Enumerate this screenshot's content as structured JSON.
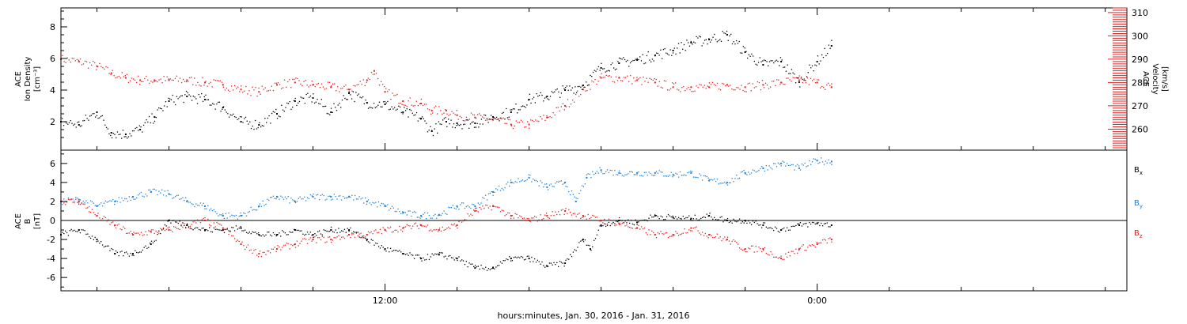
{
  "colors": {
    "black": "#000000",
    "red": "#e02020",
    "blue": "#1f7fd6",
    "background": "#ffffff"
  },
  "caption": "hours:minutes, Jan. 30, 2016 - Jan. 31, 2016",
  "chart_data": [
    {
      "type": "scatter",
      "panel": "top",
      "x_unit": "hours since 00:00 Jan. 30, 2016",
      "xlim": [
        3.0,
        32.6
      ],
      "x_ticks": [
        {
          "x": 12.0,
          "label": "12:00"
        },
        {
          "x": 24.0,
          "label": "0:00"
        }
      ],
      "left_axis": {
        "label_lines": [
          "ACE",
          "Ion Density",
          "[cm⁻³]"
        ],
        "ylim": [
          0.2,
          9.2
        ],
        "ticks": [
          2,
          4,
          6,
          8
        ],
        "color": "#000000"
      },
      "right_axis": {
        "label_lines": [
          "ACE",
          "Velocity",
          "[km/s]"
        ],
        "ylim": [
          251,
          312
        ],
        "ticks": [
          260,
          270,
          280,
          290,
          300,
          310
        ],
        "color": "#e02020"
      },
      "series": [
        {
          "axis": "left",
          "color": "#000000",
          "x": [
            3.0,
            3.5,
            4.0,
            4.4,
            4.8,
            5.2,
            5.6,
            6.0,
            6.5,
            7.0,
            7.5,
            8.0,
            8.5,
            9.0,
            9.5,
            10.0,
            10.5,
            11.0,
            11.5,
            12.0,
            12.5,
            13.0,
            13.3,
            13.7,
            14.0,
            14.5,
            15.0,
            15.5,
            16.0,
            16.5,
            17.0,
            17.5,
            18.0,
            18.5,
            19.0,
            19.5,
            20.0,
            20.5,
            21.0,
            21.5,
            22.0,
            22.5,
            23.0,
            23.5,
            24.0,
            24.4
          ],
          "y": [
            2.0,
            1.8,
            2.6,
            1.3,
            1.2,
            1.5,
            2.3,
            3.3,
            3.6,
            3.4,
            2.9,
            2.0,
            1.8,
            2.5,
            3.3,
            3.5,
            2.6,
            3.8,
            3.2,
            3.1,
            2.6,
            2.2,
            1.4,
            2.0,
            1.9,
            1.9,
            2.3,
            2.6,
            3.4,
            3.6,
            4.0,
            4.3,
            5.4,
            5.7,
            5.9,
            6.2,
            6.5,
            7.0,
            7.2,
            7.5,
            6.4,
            5.6,
            5.8,
            4.5,
            5.8,
            6.8
          ]
        },
        {
          "axis": "right",
          "color": "#e02020",
          "x": [
            3.0,
            3.5,
            4.0,
            4.4,
            4.8,
            5.2,
            5.6,
            6.0,
            6.5,
            7.0,
            7.5,
            8.0,
            8.5,
            9.0,
            9.5,
            10.0,
            10.5,
            11.0,
            11.5,
            11.7,
            12.0,
            12.5,
            13.0,
            13.3,
            13.7,
            14.0,
            14.5,
            15.0,
            15.5,
            16.0,
            16.5,
            17.0,
            17.5,
            18.0,
            18.5,
            19.0,
            19.5,
            20.0,
            20.5,
            21.0,
            21.5,
            22.0,
            22.5,
            23.0,
            23.5,
            24.0,
            24.4
          ],
          "y": [
            290,
            289,
            287,
            284,
            282,
            281,
            281,
            281,
            281,
            280,
            279,
            277,
            276,
            279,
            280,
            279,
            278,
            277,
            281,
            285,
            276,
            272,
            271,
            268,
            268,
            266,
            265,
            264,
            262,
            262,
            265,
            270,
            277,
            282,
            282,
            281,
            280,
            278,
            278,
            278,
            279,
            278,
            279,
            280,
            281,
            280,
            278
          ]
        }
      ]
    },
    {
      "type": "scatter",
      "panel": "bottom",
      "x_unit": "hours since 00:00 Jan. 30, 2016",
      "xlim": [
        3.0,
        32.6
      ],
      "left_axis": {
        "label_lines": [
          "ACE",
          "B",
          "[nT]"
        ],
        "ylim": [
          -7.4,
          7.4
        ],
        "ticks": [
          -6,
          -4,
          -2,
          0,
          2,
          4,
          6
        ],
        "color": "#000000"
      },
      "zero_line": 0,
      "legend": [
        {
          "text": "B",
          "sub": "x",
          "color": "#000000"
        },
        {
          "text": "B",
          "sub": "y",
          "color": "#1f7fd6"
        },
        {
          "text": "B",
          "sub": "z",
          "color": "#e02020"
        }
      ],
      "series": [
        {
          "name": "Bx",
          "color": "#000000",
          "x": [
            3.0,
            3.5,
            4.0,
            4.5,
            5.0,
            5.5,
            6.0,
            6.5,
            7.0,
            7.5,
            8.0,
            8.5,
            9.0,
            9.5,
            10.0,
            10.5,
            11.0,
            11.5,
            12.0,
            12.5,
            13.0,
            13.5,
            14.0,
            14.5,
            15.0,
            15.5,
            16.0,
            16.5,
            17.0,
            17.5,
            17.7,
            18.0,
            18.5,
            19.0,
            19.5,
            20.0,
            20.5,
            21.0,
            21.5,
            22.0,
            22.5,
            23.0,
            23.5,
            24.0,
            24.4
          ],
          "y": [
            -1.5,
            -1.0,
            -2.0,
            -3.5,
            -3.5,
            -2.5,
            0.0,
            -0.5,
            -1.0,
            -1.0,
            -0.8,
            -1.5,
            -1.5,
            -1.0,
            -1.5,
            -1.0,
            -1.0,
            -2.0,
            -3.0,
            -3.5,
            -4.0,
            -3.6,
            -4.0,
            -5.0,
            -5.0,
            -4.0,
            -4.0,
            -4.8,
            -4.5,
            -2.0,
            -3.0,
            -0.5,
            0.0,
            -0.2,
            0.5,
            0.3,
            0.2,
            0.5,
            0.0,
            0.0,
            -0.5,
            -1.0,
            -0.5,
            -0.3,
            -0.5
          ]
        },
        {
          "name": "By",
          "color": "#1f7fd6",
          "x": [
            3.0,
            3.5,
            4.0,
            4.5,
            5.0,
            5.5,
            6.0,
            6.5,
            7.0,
            7.5,
            8.0,
            8.5,
            9.0,
            9.5,
            10.0,
            10.5,
            11.0,
            11.5,
            12.0,
            12.5,
            13.0,
            13.5,
            14.0,
            14.5,
            15.0,
            15.5,
            16.0,
            16.5,
            17.0,
            17.3,
            17.6,
            18.0,
            18.5,
            19.0,
            19.5,
            20.0,
            20.5,
            21.0,
            21.5,
            22.0,
            22.5,
            23.0,
            23.5,
            24.0,
            24.4
          ],
          "y": [
            2.0,
            2.2,
            1.5,
            2.0,
            2.5,
            3.0,
            2.8,
            2.0,
            1.5,
            0.5,
            0.5,
            1.5,
            2.5,
            2.0,
            2.5,
            2.5,
            2.5,
            2.0,
            1.5,
            0.8,
            0.5,
            0.6,
            1.5,
            1.5,
            3.0,
            4.0,
            4.5,
            3.5,
            4.0,
            2.0,
            4.5,
            5.3,
            5.0,
            5.0,
            5.0,
            4.8,
            5.0,
            4.2,
            4.0,
            5.0,
            5.5,
            6.0,
            5.5,
            6.3,
            6.2
          ]
        },
        {
          "name": "Bz",
          "color": "#e02020",
          "x": [
            3.0,
            3.5,
            4.0,
            4.5,
            5.0,
            5.5,
            6.0,
            6.5,
            7.0,
            7.5,
            8.0,
            8.5,
            9.0,
            9.5,
            10.0,
            10.5,
            11.0,
            11.5,
            12.0,
            12.5,
            13.0,
            13.5,
            14.0,
            14.5,
            15.0,
            15.5,
            16.0,
            16.5,
            17.0,
            17.5,
            18.0,
            18.5,
            19.0,
            19.5,
            20.0,
            20.5,
            21.0,
            21.5,
            22.0,
            22.5,
            23.0,
            23.5,
            24.0,
            24.4
          ],
          "y": [
            2.0,
            2.0,
            0.5,
            -0.5,
            -1.5,
            -1.2,
            -1.0,
            -0.5,
            0.0,
            -0.8,
            -2.5,
            -3.5,
            -3.0,
            -2.5,
            -2.0,
            -2.0,
            -1.5,
            -1.5,
            -1.0,
            -0.8,
            -0.5,
            -1.0,
            -0.5,
            1.0,
            1.5,
            0.5,
            0.0,
            0.5,
            1.0,
            0.5,
            0.0,
            -0.3,
            -0.8,
            -1.5,
            -1.5,
            -0.8,
            -1.5,
            -2.0,
            -3.0,
            -3.0,
            -4.0,
            -3.0,
            -2.5,
            -2.0
          ]
        }
      ]
    }
  ]
}
